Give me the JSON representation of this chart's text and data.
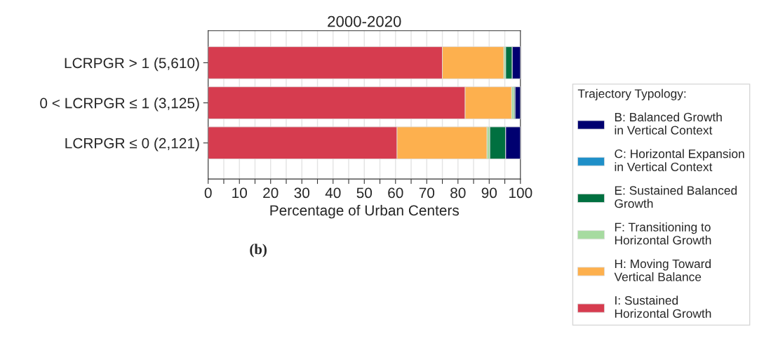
{
  "chart_data": {
    "type": "bar",
    "orientation": "horizontal",
    "stacked": true,
    "title": "2000-2020",
    "xlabel": "Percentage of Urban Centers",
    "legend_title": "Trajectory Typology:",
    "categories": [
      "LCRPGR > 1 (5,610)",
      "0 < LCRPGR ≤ 1 (3,125)",
      "LCRPGR ≤ 0 (2,121)"
    ],
    "series": [
      {
        "name": "I: Sustained\nHorizontal Growth",
        "color": "#d63c4f",
        "values": [
          75.0,
          82.3,
          60.5
        ]
      },
      {
        "name": "H: Moving Toward\nVertical Balance",
        "color": "#fdb04e",
        "values": [
          19.7,
          14.9,
          28.8
        ]
      },
      {
        "name": "F: Transitioning to\nHorizontal Growth",
        "color": "#a6dba0",
        "values": [
          0.6,
          0.7,
          0.9
        ]
      },
      {
        "name": "E: Sustained Balanced\nGrowth",
        "color": "#007040",
        "values": [
          2.1,
          0.4,
          5.1
        ]
      },
      {
        "name": "C: Horizontal Expansion\nin Vertical Context",
        "color": "#1f8fc8",
        "values": [
          0,
          0,
          0
        ]
      },
      {
        "name": "B: Balanced Growth\nin Vertical Context",
        "color": "#000070",
        "values": [
          2.6,
          1.7,
          4.7
        ]
      }
    ],
    "xlim": [
      0,
      100
    ],
    "xticks": [
      0,
      {
        "value": 5,
        "label": null
      },
      10,
      {
        "value": 15,
        "label": null
      },
      20,
      {
        "value": 25,
        "label": null
      },
      30,
      {
        "value": 35,
        "label": null
      },
      40,
      {
        "value": 45,
        "label": null
      },
      50,
      {
        "value": 55,
        "label": null
      },
      60,
      {
        "value": 65,
        "label": null
      },
      70,
      {
        "value": 75,
        "label": null
      },
      80,
      {
        "value": 85,
        "label": null
      },
      90,
      {
        "value": 95,
        "label": null
      },
      100
    ],
    "grid": "x",
    "legend": "right",
    "annotations": [
      "(b)"
    ]
  }
}
